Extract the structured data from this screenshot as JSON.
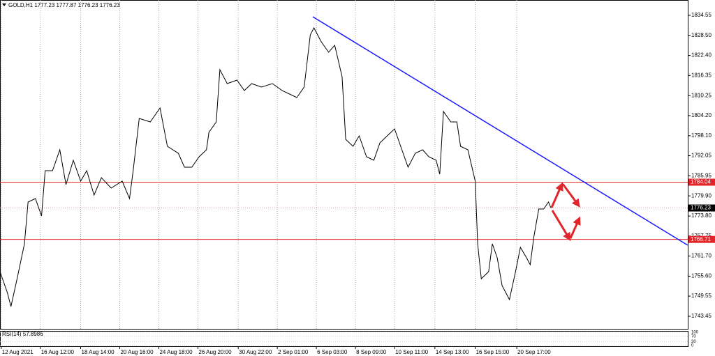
{
  "chart_data": {
    "type": "line",
    "title": "GOLD,H1  1777.23 1777.87 1776.23 1776.23",
    "color": "#000000",
    "xlim": [
      0,
      563
    ],
    "ylim": [
      1739.65,
      1839.19
    ],
    "xticks": [
      {
        "value": 1,
        "label": "12 Aug 2021"
      },
      {
        "value": 33,
        "label": "16 Aug 12:00"
      },
      {
        "value": 66,
        "label": "18 Aug 14:00"
      },
      {
        "value": 98,
        "label": "20 Aug 16:00"
      },
      {
        "value": 130,
        "label": "24 Aug 18:00"
      },
      {
        "value": 162,
        "label": "26 Aug 20:00"
      },
      {
        "value": 195,
        "label": "30 Aug 22:00"
      },
      {
        "value": 227,
        "label": "2 Sep 01:00"
      },
      {
        "value": 259,
        "label": "6 Sep 03:00"
      },
      {
        "value": 291,
        "label": "8 Sep 09:00"
      },
      {
        "value": 323,
        "label": "10 Sep 11:00"
      },
      {
        "value": 356,
        "label": "14 Sep 13:00"
      },
      {
        "value": 389,
        "label": "16 Sep 15:00"
      },
      {
        "value": 423,
        "label": "20 Sep 17:00"
      }
    ],
    "yticks": [
      1834.55,
      {
        "value": 1828.5,
        "label": "1828.50"
      },
      {
        "value": 1822.4,
        "label": "1822.40"
      },
      1816.35,
      1810.25,
      {
        "value": 1804.2,
        "label": "1804.20"
      },
      {
        "value": 1798.1,
        "label": "1798.10"
      },
      1792.05,
      1785.95,
      {
        "value": 1779.9,
        "label": "1779.90"
      },
      {
        "value": 1773.8,
        "label": "1773.80"
      },
      1767.75,
      {
        "value": 1761.7,
        "label": "1761.70"
      },
      {
        "value": 1755.6,
        "label": "1755.60"
      },
      1749.55,
      1743.45
    ],
    "grid": true,
    "x": [
      0,
      6,
      9,
      14,
      20,
      23,
      29,
      34,
      37,
      43,
      49,
      54,
      60,
      66,
      71,
      77,
      83,
      91,
      100,
      106,
      109,
      114,
      123,
      131,
      137,
      146,
      151,
      157,
      163,
      169,
      171,
      177,
      180,
      186,
      194,
      200,
      206,
      214,
      223,
      231,
      237,
      243,
      249,
      254,
      257,
      263,
      269,
      274,
      280,
      283,
      289,
      294,
      300,
      306,
      311,
      317,
      323,
      329,
      334,
      340,
      346,
      351,
      357,
      360,
      363,
      369,
      374,
      377,
      383,
      389,
      391,
      394,
      400,
      403,
      407,
      411,
      417,
      422,
      426,
      431,
      434,
      437,
      441,
      445,
      449,
      451
    ],
    "values": [
      1756.95,
      1750.62,
      1746.4,
      1754.84,
      1765.38,
      1778.03,
      1779.09,
      1773.82,
      1787.52,
      1787.52,
      1793.85,
      1783.31,
      1790.69,
      1784.36,
      1787.52,
      1780.14,
      1785.42,
      1782.25,
      1784.36,
      1779.09,
      1787.52,
      1803.34,
      1802.29,
      1806.5,
      1794.91,
      1792.8,
      1788.58,
      1788.58,
      1791.74,
      1793.85,
      1799.12,
      1802.29,
      1818.1,
      1813.88,
      1814.94,
      1811.78,
      1813.88,
      1812.83,
      1813.88,
      1811.78,
      1810.72,
      1809.67,
      1812.83,
      1828.65,
      1830.75,
      1826.54,
      1823.37,
      1825.48,
      1815.99,
      1797.01,
      1794.91,
      1798.07,
      1791.74,
      1790.69,
      1795.96,
      1798.07,
      1800.18,
      1793.85,
      1788.58,
      1792.8,
      1793.85,
      1791.74,
      1790.69,
      1786.47,
      1805.45,
      1802.29,
      1802.29,
      1794.91,
      1793.85,
      1784.36,
      1765.38,
      1754.84,
      1756.95,
      1765.38,
      1761.16,
      1752.73,
      1748.51,
      1756.95,
      1764.33,
      1761.16,
      1759.06,
      1767.49,
      1775.93,
      1775.93,
      1778.03,
      1776.23
    ],
    "levels": [
      {
        "value": 1784.04,
        "color": "#e0262b"
      },
      {
        "value": 1766.71,
        "color": "#e0262b"
      }
    ],
    "current_price": {
      "value": 1776.23,
      "color": "#000000"
    },
    "trendline": {
      "x": [
        256,
        563
      ],
      "values": [
        1834.13,
        1764.96
      ],
      "color": "#1a1aff"
    },
    "rsi": {
      "label": "RSI(14) 57.8986",
      "ylim": [
        0,
        100
      ],
      "yticks": [
        100,
        70,
        30,
        0
      ]
    }
  }
}
